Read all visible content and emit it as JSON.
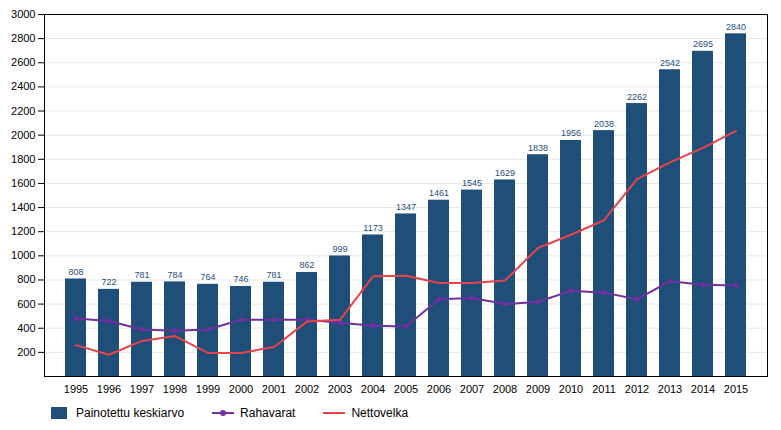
{
  "chart_data": {
    "type": "bar",
    "categories": [
      "1995",
      "1996",
      "1997",
      "1998",
      "1999",
      "2000",
      "2001",
      "2002",
      "2003",
      "2004",
      "2005",
      "2006",
      "2007",
      "2008",
      "2009",
      "2010",
      "2011",
      "2012",
      "2013",
      "2014",
      "2015"
    ],
    "series": [
      {
        "name": "Painotettu keskiarvo",
        "type": "bar",
        "color": "#1F4E79",
        "data_labels": true,
        "values": [
          808,
          722,
          781,
          784,
          764,
          746,
          781,
          862,
          999,
          1173,
          1347,
          1461,
          1545,
          1629,
          1838,
          1956,
          2038,
          2262,
          2542,
          2695,
          2840
        ]
      },
      {
        "name": "Rahavarat",
        "type": "line",
        "color": "#7030A0",
        "marker": "circle",
        "values": [
          480,
          460,
          390,
          380,
          390,
          470,
          470,
          470,
          445,
          420,
          415,
          640,
          650,
          600,
          620,
          710,
          695,
          640,
          790,
          760,
          755
        ]
      },
      {
        "name": "Nettovelka",
        "type": "line",
        "color": "#E8434A",
        "values": [
          260,
          180,
          295,
          335,
          195,
          195,
          245,
          455,
          470,
          830,
          835,
          775,
          775,
          795,
          1065,
          1175,
          1295,
          1635,
          1775,
          1895,
          2035
        ]
      }
    ],
    "ylim": [
      0,
      3000
    ],
    "yticks": [
      200,
      400,
      600,
      800,
      1000,
      1200,
      1400,
      1600,
      1800,
      2000,
      2200,
      2400,
      2600,
      2800,
      3000
    ],
    "grid": true,
    "legend": "bottom"
  }
}
